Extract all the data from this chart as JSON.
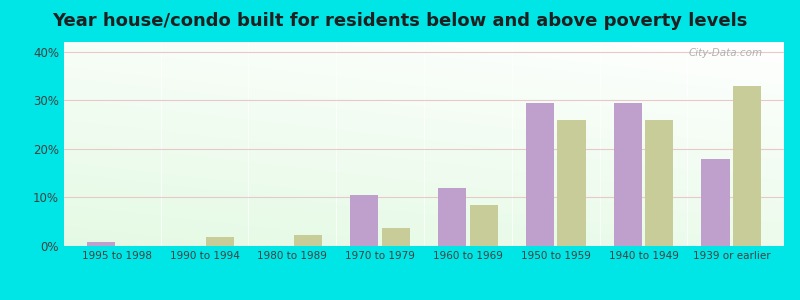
{
  "title": "Year house/condo built for residents below and above poverty levels",
  "categories": [
    "1995 to 1998",
    "1990 to 1994",
    "1980 to 1989",
    "1970 to 1979",
    "1960 to 1969",
    "1950 to 1959",
    "1940 to 1949",
    "1939 or earlier"
  ],
  "below_poverty": [
    0.8,
    0.0,
    0.0,
    10.5,
    12.0,
    29.5,
    29.5,
    18.0
  ],
  "above_poverty": [
    0.0,
    1.8,
    2.2,
    3.8,
    8.5,
    26.0,
    26.0,
    33.0
  ],
  "below_color": "#bf9fcc",
  "above_color": "#c8cc99",
  "background_color_top": "#f0faf0",
  "background_color_bottom": "#d8f0d0",
  "outer_background": "#00e5e5",
  "ylim": [
    0,
    42
  ],
  "yticks": [
    0,
    10,
    20,
    30,
    40
  ],
  "ytick_labels": [
    "0%",
    "10%",
    "20%",
    "30%",
    "40%"
  ],
  "title_fontsize": 13,
  "bar_width": 0.32,
  "watermark": "City-Data.com"
}
